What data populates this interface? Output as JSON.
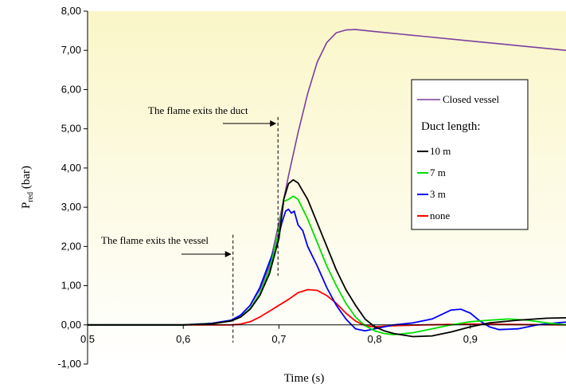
{
  "chart_data": {
    "type": "line",
    "xlabel": "Time (s)",
    "ylabel_main": "P",
    "ylabel_sub": "red",
    "ylabel_unit": " (bar)",
    "xlim": [
      0.5,
      1.0
    ],
    "ylim": [
      -1.0,
      8.0
    ],
    "x_ticks": [
      0.5,
      0.6,
      0.7,
      0.8,
      0.9
    ],
    "x_tick_labels": [
      "0,5",
      "0,6",
      "0,7",
      "0,8",
      "0,9"
    ],
    "y_ticks": [
      -1,
      0,
      1,
      2,
      3,
      4,
      5,
      6,
      7,
      8
    ],
    "y_tick_labels": [
      "-1,00",
      "0,00",
      "1,00",
      "2,00",
      "3,00",
      "4,00",
      "5,00",
      "6,00",
      "7,00",
      "8,00"
    ],
    "grid": false,
    "background": {
      "top": "#faf6c8",
      "bottom": "#ffffff"
    },
    "legend": {
      "placement": "right",
      "heading": "Duct length:",
      "entries": [
        "Closed vessel",
        "10 m",
        "7 m",
        "3 m",
        "none"
      ]
    },
    "annotations": [
      {
        "text": "The flame exits the duct",
        "x": 0.699
      },
      {
        "text": "The flame exits the vessel",
        "x": 0.652
      }
    ],
    "series": [
      {
        "name": "Closed vessel",
        "color": "#7b3fa0",
        "points": [
          [
            0.5,
            0
          ],
          [
            0.6,
            0
          ],
          [
            0.63,
            0.03
          ],
          [
            0.65,
            0.12
          ],
          [
            0.66,
            0.25
          ],
          [
            0.67,
            0.5
          ],
          [
            0.68,
            0.9
          ],
          [
            0.69,
            1.5
          ],
          [
            0.7,
            2.6
          ],
          [
            0.71,
            3.8
          ],
          [
            0.72,
            4.9
          ],
          [
            0.73,
            5.9
          ],
          [
            0.74,
            6.7
          ],
          [
            0.75,
            7.2
          ],
          [
            0.76,
            7.45
          ],
          [
            0.77,
            7.52
          ],
          [
            0.78,
            7.53
          ],
          [
            0.8,
            7.48
          ],
          [
            0.85,
            7.36
          ],
          [
            0.9,
            7.24
          ],
          [
            0.95,
            7.12
          ],
          [
            1.0,
            7.0
          ]
        ]
      },
      {
        "name": "10 m",
        "color": "#000000",
        "points": [
          [
            0.5,
            0
          ],
          [
            0.6,
            0
          ],
          [
            0.63,
            0.03
          ],
          [
            0.65,
            0.1
          ],
          [
            0.66,
            0.2
          ],
          [
            0.67,
            0.4
          ],
          [
            0.68,
            0.75
          ],
          [
            0.69,
            1.3
          ],
          [
            0.7,
            2.2
          ],
          [
            0.705,
            3.2
          ],
          [
            0.71,
            3.6
          ],
          [
            0.715,
            3.7
          ],
          [
            0.72,
            3.62
          ],
          [
            0.73,
            3.2
          ],
          [
            0.74,
            2.6
          ],
          [
            0.75,
            2.0
          ],
          [
            0.76,
            1.4
          ],
          [
            0.77,
            0.9
          ],
          [
            0.78,
            0.5
          ],
          [
            0.79,
            0.15
          ],
          [
            0.8,
            -0.05
          ],
          [
            0.81,
            -0.15
          ],
          [
            0.82,
            -0.22
          ],
          [
            0.84,
            -0.3
          ],
          [
            0.86,
            -0.28
          ],
          [
            0.88,
            -0.18
          ],
          [
            0.9,
            -0.05
          ],
          [
            0.92,
            0.05
          ],
          [
            0.95,
            0.12
          ],
          [
            0.98,
            0.17
          ],
          [
            1.0,
            0.18
          ]
        ]
      },
      {
        "name": "7 m",
        "color": "#00e000",
        "points": [
          [
            0.5,
            0
          ],
          [
            0.6,
            0
          ],
          [
            0.63,
            0.03
          ],
          [
            0.65,
            0.1
          ],
          [
            0.66,
            0.2
          ],
          [
            0.67,
            0.42
          ],
          [
            0.68,
            0.8
          ],
          [
            0.69,
            1.4
          ],
          [
            0.7,
            2.4
          ],
          [
            0.705,
            3.15
          ],
          [
            0.71,
            3.2
          ],
          [
            0.715,
            3.28
          ],
          [
            0.72,
            3.2
          ],
          [
            0.73,
            2.7
          ],
          [
            0.74,
            2.1
          ],
          [
            0.75,
            1.5
          ],
          [
            0.76,
            1.0
          ],
          [
            0.77,
            0.55
          ],
          [
            0.78,
            0.2
          ],
          [
            0.79,
            -0.02
          ],
          [
            0.8,
            -0.15
          ],
          [
            0.81,
            -0.22
          ],
          [
            0.82,
            -0.25
          ],
          [
            0.84,
            -0.2
          ],
          [
            0.86,
            -0.1
          ],
          [
            0.88,
            0.0
          ],
          [
            0.9,
            0.08
          ],
          [
            0.92,
            0.12
          ],
          [
            0.94,
            0.15
          ],
          [
            0.96,
            0.12
          ],
          [
            0.98,
            0.05
          ],
          [
            1.0,
            0.0
          ]
        ]
      },
      {
        "name": "3 m",
        "color": "#0000ff",
        "points": [
          [
            0.5,
            0
          ],
          [
            0.6,
            0
          ],
          [
            0.63,
            0.04
          ],
          [
            0.65,
            0.12
          ],
          [
            0.66,
            0.25
          ],
          [
            0.67,
            0.5
          ],
          [
            0.68,
            0.95
          ],
          [
            0.69,
            1.6
          ],
          [
            0.698,
            2.1
          ],
          [
            0.703,
            2.6
          ],
          [
            0.707,
            2.9
          ],
          [
            0.71,
            2.95
          ],
          [
            0.713,
            2.85
          ],
          [
            0.716,
            2.9
          ],
          [
            0.72,
            2.55
          ],
          [
            0.725,
            2.4
          ],
          [
            0.73,
            2.0
          ],
          [
            0.74,
            1.5
          ],
          [
            0.75,
            0.95
          ],
          [
            0.76,
            0.5
          ],
          [
            0.77,
            0.15
          ],
          [
            0.78,
            -0.1
          ],
          [
            0.79,
            -0.15
          ],
          [
            0.8,
            -0.1
          ],
          [
            0.82,
            0.0
          ],
          [
            0.84,
            0.05
          ],
          [
            0.86,
            0.15
          ],
          [
            0.88,
            0.38
          ],
          [
            0.89,
            0.4
          ],
          [
            0.9,
            0.3
          ],
          [
            0.91,
            0.1
          ],
          [
            0.92,
            -0.05
          ],
          [
            0.93,
            -0.12
          ],
          [
            0.95,
            -0.1
          ],
          [
            0.97,
            0.0
          ],
          [
            0.99,
            0.05
          ],
          [
            1.0,
            0.07
          ]
        ]
      },
      {
        "name": "none",
        "color": "#ff0000",
        "points": [
          [
            0.5,
            0
          ],
          [
            0.65,
            0
          ],
          [
            0.66,
            0.02
          ],
          [
            0.67,
            0.08
          ],
          [
            0.68,
            0.2
          ],
          [
            0.69,
            0.35
          ],
          [
            0.7,
            0.5
          ],
          [
            0.71,
            0.65
          ],
          [
            0.72,
            0.82
          ],
          [
            0.73,
            0.9
          ],
          [
            0.74,
            0.88
          ],
          [
            0.75,
            0.75
          ],
          [
            0.76,
            0.55
          ],
          [
            0.77,
            0.3
          ],
          [
            0.78,
            0.1
          ],
          [
            0.79,
            -0.02
          ],
          [
            0.8,
            -0.05
          ],
          [
            0.82,
            -0.02
          ],
          [
            0.85,
            0.0
          ],
          [
            0.9,
            0.02
          ],
          [
            0.95,
            0.01
          ],
          [
            1.0,
            0.0
          ]
        ]
      }
    ]
  }
}
